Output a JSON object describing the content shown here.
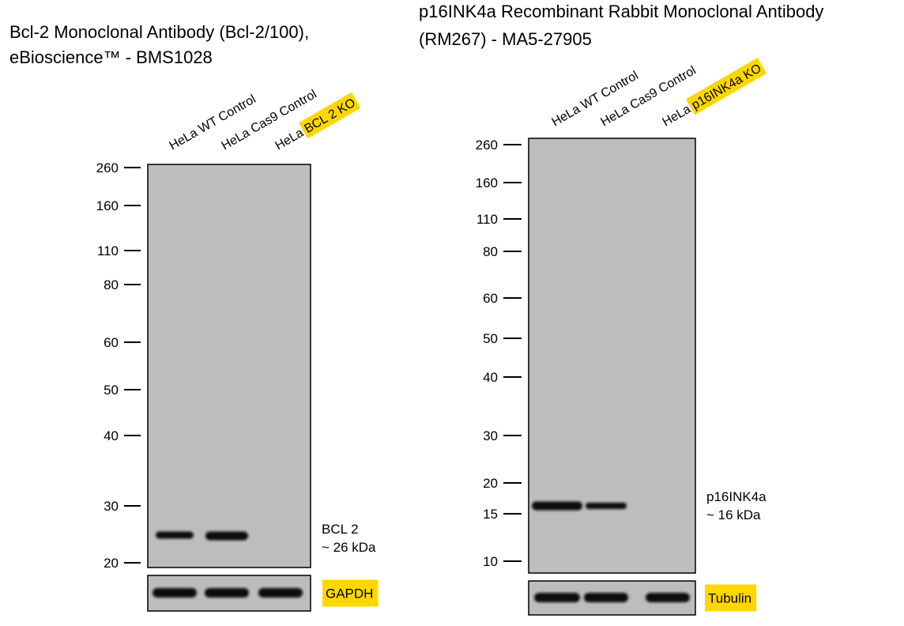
{
  "panels": [
    {
      "title": [
        "Bcl-2 Monoclonal Antibody (Bcl-2/100),",
        "eBioscience™ - BMS1028"
      ],
      "lanes": [
        {
          "cell": "HeLa",
          "condition": "WT Control"
        },
        {
          "cell": "HeLa",
          "condition": "Cas9 Control"
        },
        {
          "cell": "HeLa",
          "condition": "BCL 2 KO"
        }
      ],
      "highlighted_lane": 2,
      "markers": [
        260,
        160,
        110,
        80,
        60,
        50,
        40,
        30,
        20
      ],
      "band_label": [
        "BCL 2",
        "~ 26 kDa"
      ],
      "loading_control": "GAPDH"
    },
    {
      "title": [
        "p16INK4a Recombinant Rabbit Monoclonal Antibody",
        "(RM267) - MA5-27905"
      ],
      "lanes": [
        {
          "cell": "HeLa",
          "condition": "WT Control"
        },
        {
          "cell": "HeLa",
          "condition": "Cas9 Control"
        },
        {
          "cell": "HeLa",
          "condition": "p16INK4a KO"
        }
      ],
      "highlighted_lane": 2,
      "markers": [
        260,
        160,
        110,
        80,
        60,
        50,
        40,
        30,
        20,
        15,
        10
      ],
      "band_label": [
        "p16INK4a",
        "~ 16 kDa"
      ],
      "loading_control": "Tubulin"
    }
  ]
}
